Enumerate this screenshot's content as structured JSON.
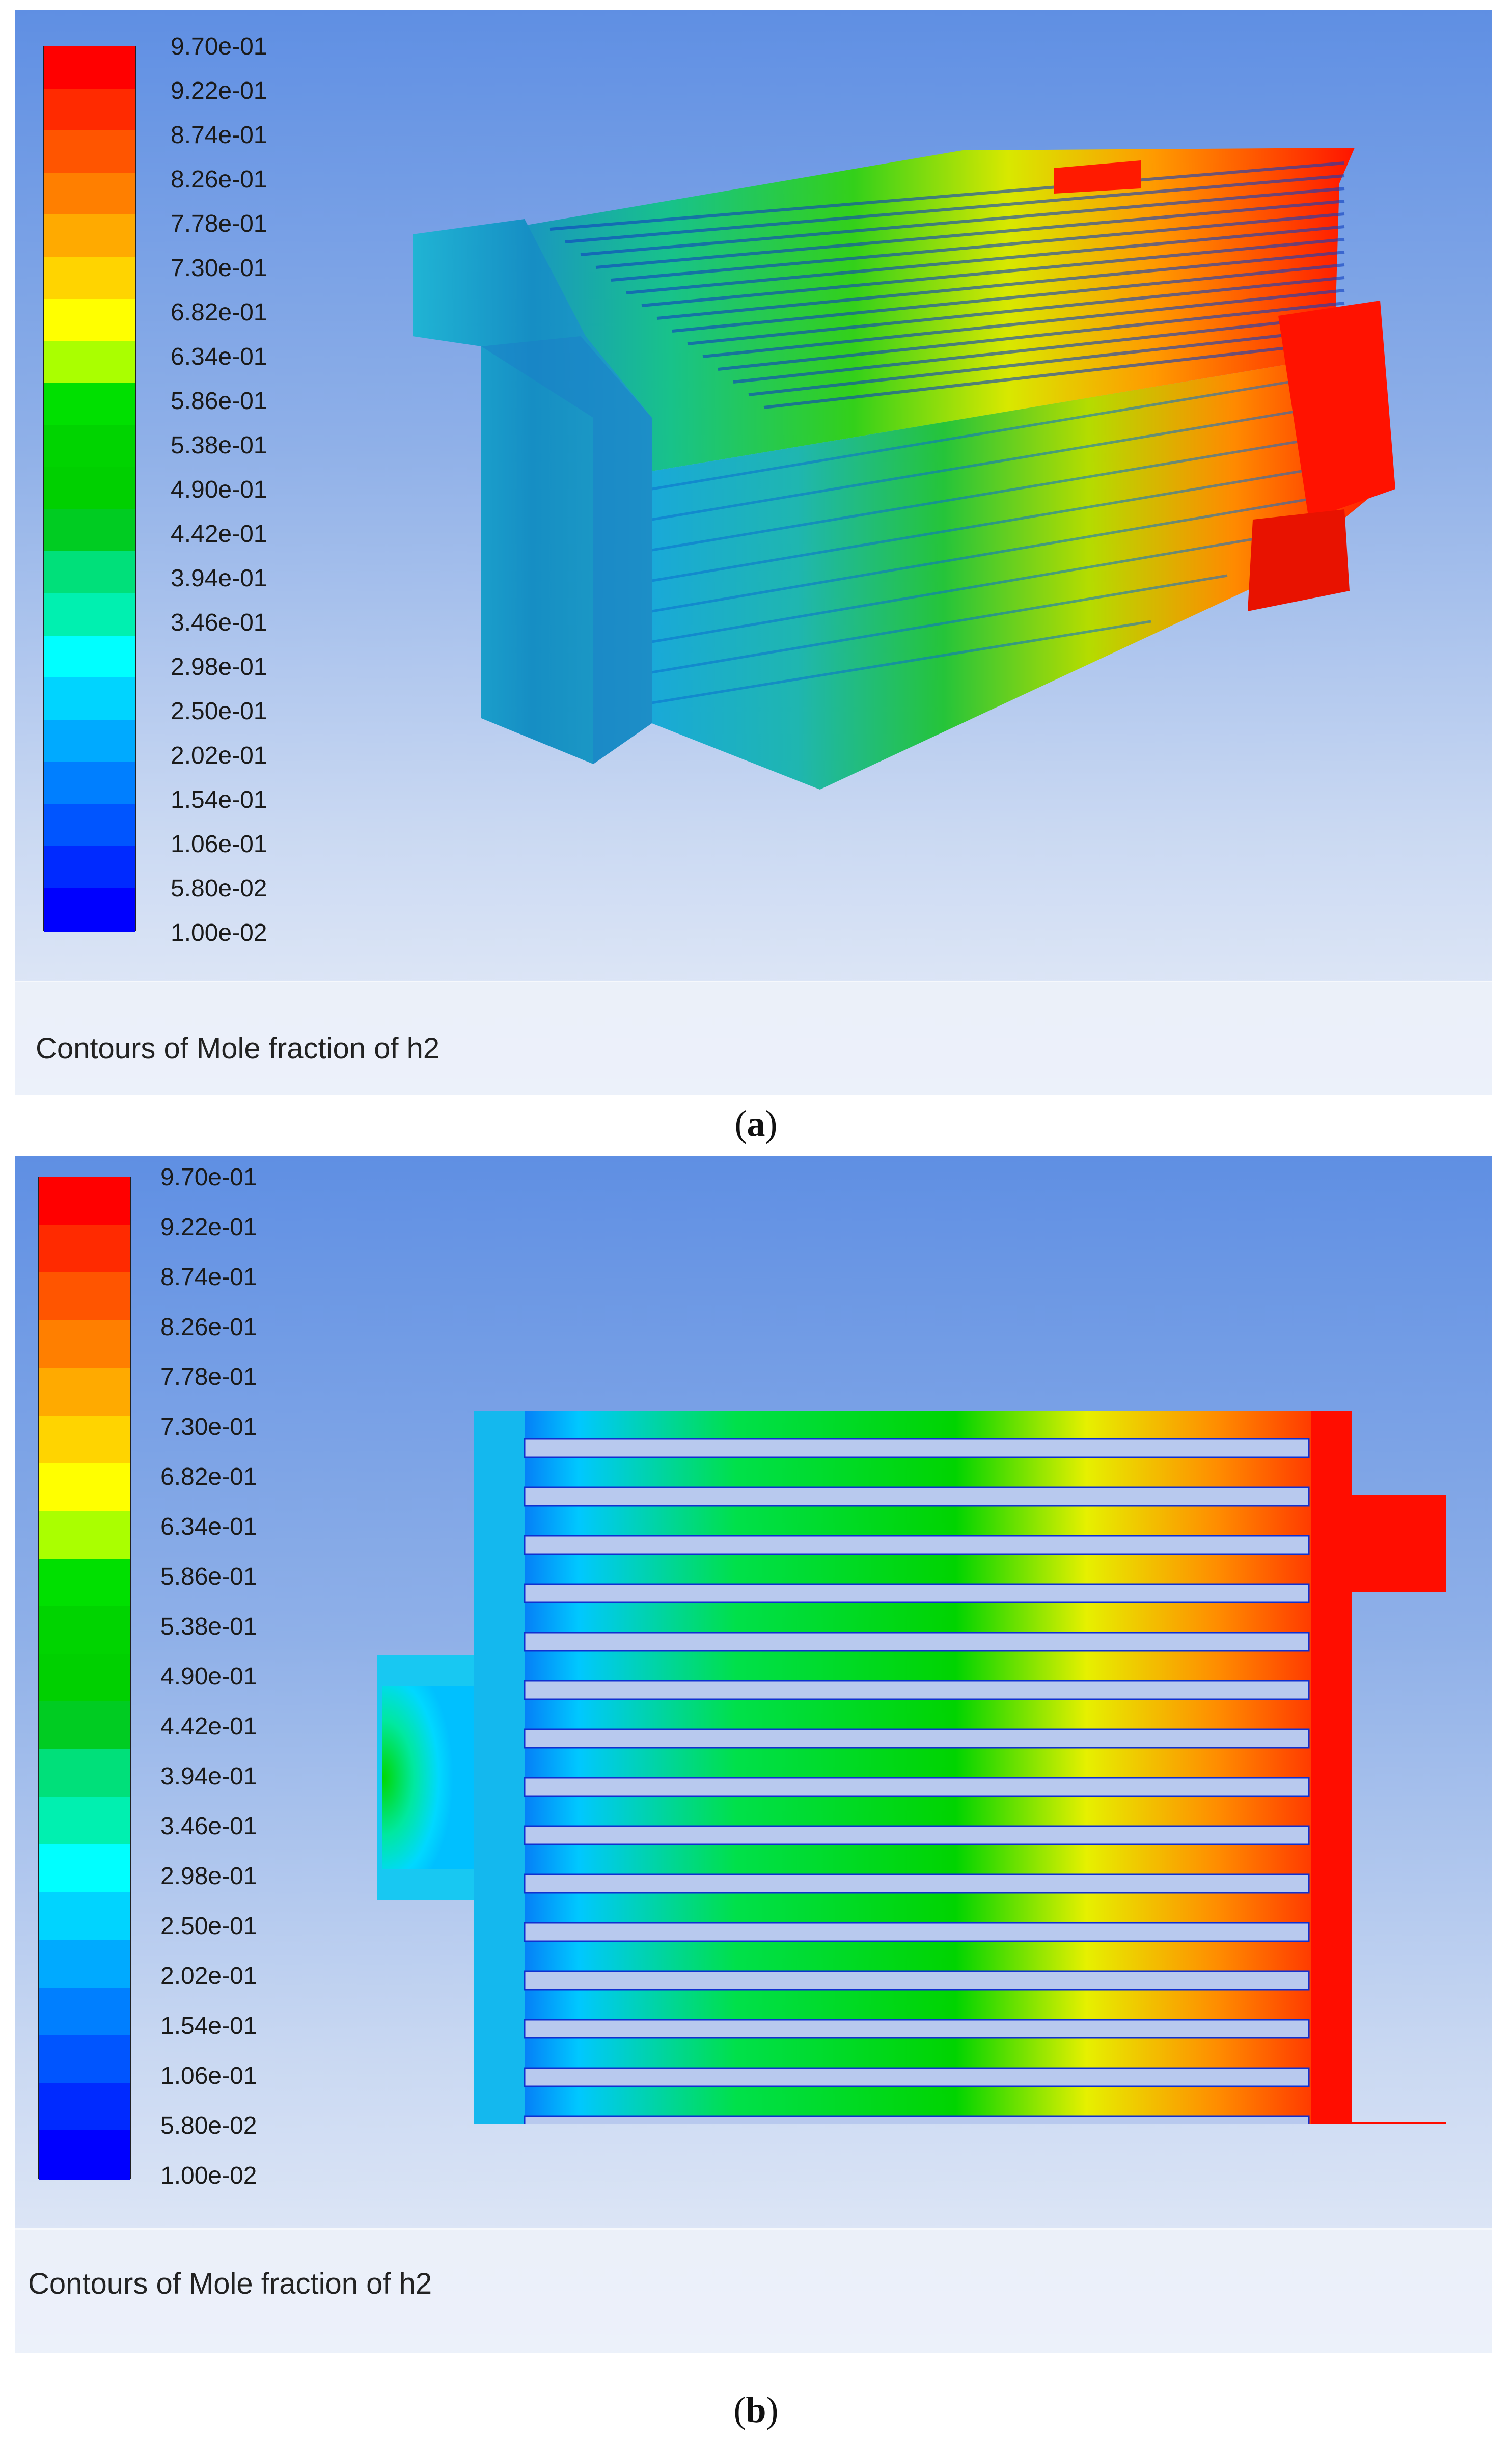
{
  "panels": [
    {
      "id": "a",
      "sub_label_open": "(",
      "sub_label_letter": "a",
      "sub_label_close": ")",
      "caption": "Contours of Mole fraction of h2",
      "legend_labels": [
        "9.70e-01",
        "9.22e-01",
        "8.74e-01",
        "8.26e-01",
        "7.78e-01",
        "7.30e-01",
        "6.82e-01",
        "6.34e-01",
        "5.86e-01",
        "5.38e-01",
        "4.90e-01",
        "4.42e-01",
        "3.94e-01",
        "3.46e-01",
        "2.98e-01",
        "2.50e-01",
        "2.02e-01",
        "1.54e-01",
        "1.06e-01",
        "5.80e-02",
        "1.00e-02"
      ]
    },
    {
      "id": "b",
      "sub_label_open": "(",
      "sub_label_letter": "b",
      "sub_label_close": ")",
      "caption": "Contours of Mole fraction of h2",
      "legend_labels": [
        "9.70e-01",
        "9.22e-01",
        "8.74e-01",
        "8.26e-01",
        "7.78e-01",
        "7.30e-01",
        "6.82e-01",
        "6.34e-01",
        "5.86e-01",
        "5.38e-01",
        "4.90e-01",
        "4.42e-01",
        "3.94e-01",
        "3.46e-01",
        "2.98e-01",
        "2.50e-01",
        "2.02e-01",
        "1.54e-01",
        "1.06e-01",
        "5.80e-02",
        "1.00e-02"
      ]
    }
  ],
  "colormap": [
    "#ff0000",
    "#ff2a00",
    "#ff5500",
    "#ff7f00",
    "#ffaa00",
    "#ffd400",
    "#ffff00",
    "#aaff00",
    "#00e000",
    "#00d400",
    "#00d000",
    "#00cc22",
    "#00e07a",
    "#00f0b0",
    "#00ffff",
    "#00d4ff",
    "#00aaff",
    "#007fff",
    "#0055ff",
    "#002aff",
    "#0000ff"
  ]
}
